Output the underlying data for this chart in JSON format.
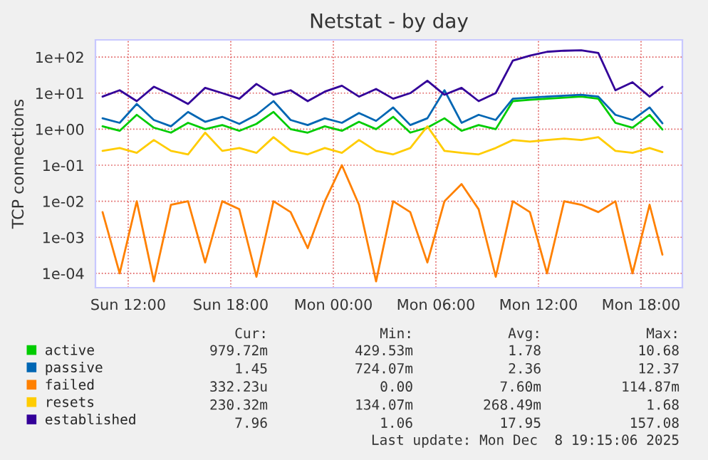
{
  "chart_data": {
    "type": "line",
    "title": "Netstat - by day",
    "ylabel": "TCP connections",
    "log": true,
    "grid": true,
    "legend": "bottom",
    "x": [
      "2025-12-07T10:30",
      "2025-12-07T11:30",
      "2025-12-07T12:30",
      "2025-12-07T13:30",
      "2025-12-07T14:30",
      "2025-12-07T15:30",
      "2025-12-07T16:30",
      "2025-12-07T17:30",
      "2025-12-07T18:30",
      "2025-12-07T19:30",
      "2025-12-07T20:30",
      "2025-12-07T21:30",
      "2025-12-07T22:30",
      "2025-12-07T23:30",
      "2025-12-08T00:30",
      "2025-12-08T01:30",
      "2025-12-08T02:30",
      "2025-12-08T03:30",
      "2025-12-08T04:30",
      "2025-12-08T05:30",
      "2025-12-08T06:30",
      "2025-12-08T07:30",
      "2025-12-08T08:30",
      "2025-12-08T09:30",
      "2025-12-08T10:30",
      "2025-12-08T11:30",
      "2025-12-08T12:30",
      "2025-12-08T13:30",
      "2025-12-08T14:30",
      "2025-12-08T15:30",
      "2025-12-08T16:30",
      "2025-12-08T17:30",
      "2025-12-08T18:30",
      "2025-12-08T19:15"
    ],
    "xlim": [
      "2025-12-07T10:05",
      "2025-12-08T20:25"
    ],
    "xticks": [
      {
        "value": "2025-12-07T12:00",
        "label": "Sun 12:00"
      },
      {
        "value": "2025-12-07T18:00",
        "label": "Sun 18:00"
      },
      {
        "value": "2025-12-08T00:00",
        "label": "Mon 00:00"
      },
      {
        "value": "2025-12-08T06:00",
        "label": "Mon 06:00"
      },
      {
        "value": "2025-12-08T12:00",
        "label": "Mon 12:00"
      },
      {
        "value": "2025-12-08T18:00",
        "label": "Mon 18:00"
      }
    ],
    "ylim": [
      4e-05,
      300
    ],
    "yticks": [
      {
        "value": 0.0001,
        "label": "1e-04"
      },
      {
        "value": 0.001,
        "label": "1e-03"
      },
      {
        "value": 0.01,
        "label": "1e-02"
      },
      {
        "value": 0.1,
        "label": "1e-01"
      },
      {
        "value": 1,
        "label": "1e+00"
      },
      {
        "value": 10,
        "label": "1e+01"
      },
      {
        "value": 100,
        "label": "1e+02"
      }
    ],
    "series": [
      {
        "name": "active",
        "color": "#00cc00",
        "values": [
          1.2,
          0.9,
          2.5,
          1.1,
          0.8,
          1.5,
          1.0,
          1.3,
          0.9,
          1.4,
          3,
          1.0,
          0.8,
          1.2,
          0.9,
          1.6,
          1.0,
          2.2,
          0.8,
          1.1,
          2,
          0.9,
          1.3,
          1.0,
          6,
          6.5,
          7,
          7.5,
          8,
          7,
          1.5,
          1.1,
          2.5,
          0.98
        ]
      },
      {
        "name": "passive",
        "color": "#0066b3",
        "values": [
          2,
          1.5,
          5,
          1.8,
          1.2,
          3,
          1.6,
          2.2,
          1.4,
          2.5,
          6,
          1.8,
          1.3,
          2,
          1.5,
          2.8,
          1.7,
          4,
          1.3,
          2,
          12,
          1.5,
          2.5,
          1.8,
          7,
          7.5,
          8,
          8.5,
          9,
          8,
          2.5,
          1.8,
          4,
          1.45
        ]
      },
      {
        "name": "failed",
        "color": "#ff8000",
        "values": [
          0.005,
          0.0001,
          0.01,
          6e-05,
          0.008,
          0.01,
          0.0002,
          0.01,
          0.006,
          8e-05,
          0.01,
          0.005,
          0.0005,
          0.01,
          0.1,
          0.008,
          6e-05,
          0.01,
          0.005,
          0.0002,
          0.01,
          0.03,
          0.006,
          8e-05,
          0.01,
          0.005,
          0.0001,
          0.01,
          0.008,
          0.005,
          0.01,
          0.0001,
          0.008,
          0.00033
        ]
      },
      {
        "name": "resets",
        "color": "#ffcc00",
        "values": [
          0.25,
          0.3,
          0.22,
          0.5,
          0.25,
          0.2,
          0.8,
          0.25,
          0.3,
          0.22,
          0.6,
          0.25,
          0.2,
          0.3,
          0.22,
          0.5,
          0.25,
          0.2,
          0.3,
          1.2,
          0.25,
          0.22,
          0.2,
          0.3,
          0.5,
          0.45,
          0.5,
          0.55,
          0.5,
          0.6,
          0.25,
          0.22,
          0.3,
          0.23
        ]
      },
      {
        "name": "established",
        "color": "#330099",
        "values": [
          8,
          12,
          6,
          15,
          9,
          5,
          14,
          10,
          7,
          18,
          9,
          12,
          6,
          11,
          16,
          8,
          13,
          7,
          10,
          22,
          9,
          14,
          6,
          10,
          80,
          110,
          140,
          150,
          155,
          130,
          12,
          20,
          8,
          15
        ]
      }
    ],
    "annotations": [
      "Cur:",
      "Min:",
      "Avg:",
      "Max:",
      "979.72m",
      "429.53m",
      "1.78",
      "10.68",
      "1.45",
      "724.07m",
      "2.36",
      "12.37",
      "332.23u",
      "0.00",
      "7.60m",
      "114.87m",
      "230.32m",
      "134.07m",
      "268.49m",
      "1.68",
      "7.96",
      "1.06",
      "17.95",
      "157.08",
      "Last update: Mon Dec  8 19:15:06 2025"
    ]
  }
}
